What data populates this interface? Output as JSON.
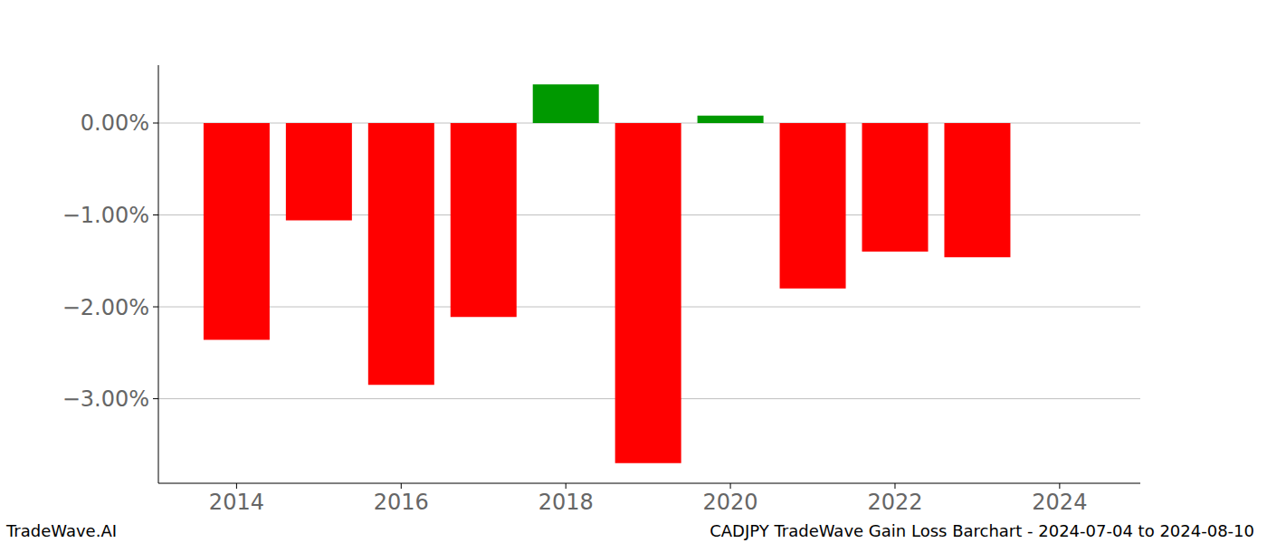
{
  "chart_data": {
    "type": "bar",
    "title": "CADJPY TradeWave Gain Loss Barchart - 2024-07-04 to 2024-08-10",
    "annotations": [
      "TradeWave.AI"
    ],
    "x": [
      2014,
      2015,
      2016,
      2017,
      2018,
      2019,
      2020,
      2021,
      2022,
      2023
    ],
    "values": [
      -2.36,
      -1.06,
      -2.85,
      -2.11,
      0.42,
      -3.7,
      0.08,
      -1.8,
      -1.4,
      -1.46
    ],
    "colors": [
      "#ff0000",
      "#ff0000",
      "#ff0000",
      "#ff0000",
      "#009900",
      "#ff0000",
      "#009900",
      "#ff0000",
      "#ff0000",
      "#ff0000"
    ],
    "xlim": [
      2013.05,
      2024.98
    ],
    "xticks": [
      2014,
      2016,
      2018,
      2020,
      2022,
      2024
    ],
    "ylim": [
      -3.92,
      0.63
    ],
    "yticks": [
      {
        "value": 0,
        "label": "0.00%"
      },
      {
        "value": -1,
        "label": "−1.00%"
      },
      {
        "value": -2,
        "label": "−2.00%"
      },
      {
        "value": -3,
        "label": "−3.00%"
      }
    ],
    "grid": true
  }
}
